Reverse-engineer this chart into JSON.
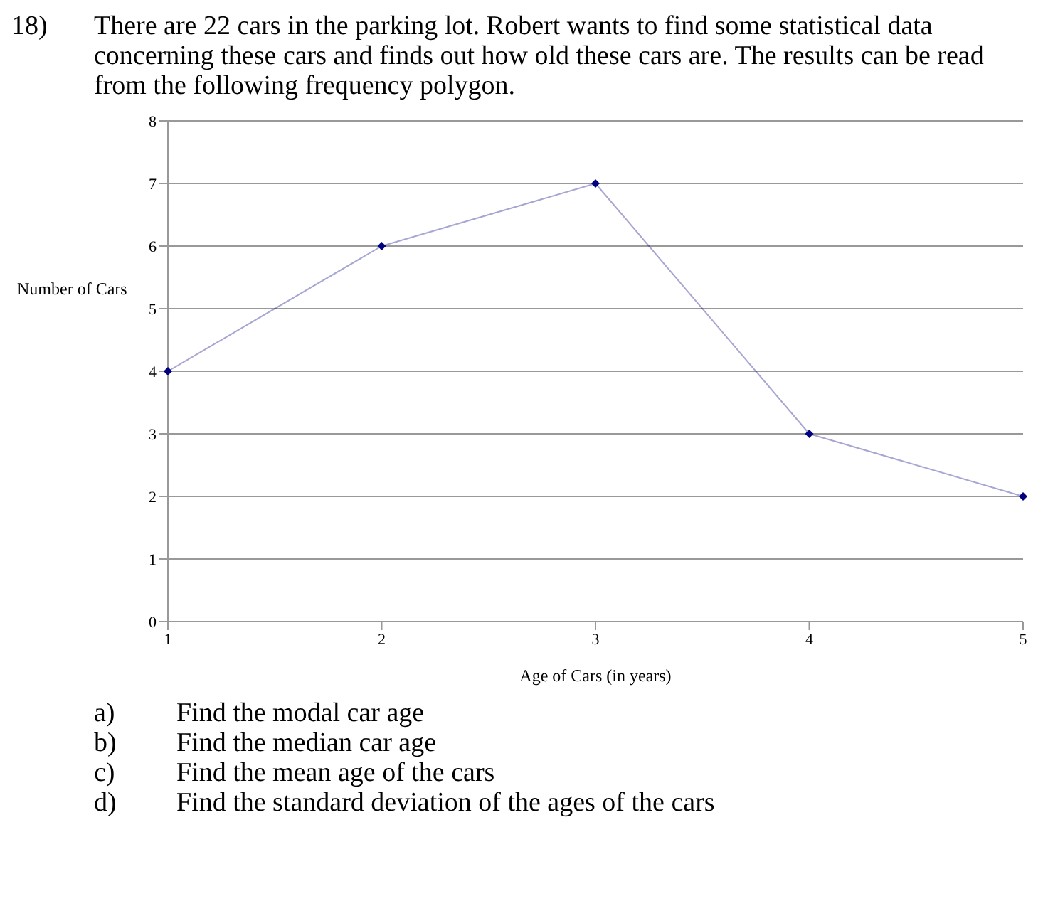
{
  "chart_data": {
    "type": "line",
    "title": "18) There are 22 cars in the parking lot. Robert wants to find some statistical data concerning these cars and finds out how old these cars are. The results can be read from the following frequency polygon.",
    "xlabel": "Age of Cars (in years)",
    "ylabel": "Number of Cars",
    "categories": [
      "1",
      "2",
      "3",
      "4",
      "5"
    ],
    "series": [
      {
        "color": "#000080",
        "values": [
          4,
          6,
          7,
          3,
          2
        ]
      }
    ],
    "ylim": [
      0,
      8
    ],
    "yticks": [
      0,
      1,
      2,
      3,
      4,
      5,
      6,
      7,
      8
    ],
    "grid": "y",
    "marker": "diamond",
    "line_style": "solid",
    "legend": false,
    "annotations": [
      "a) Find the modal car age",
      "b) Find the median car age",
      "c) Find the mean age of the cars",
      "d) Find the standard deviation of the ages of the cars"
    ]
  }
}
